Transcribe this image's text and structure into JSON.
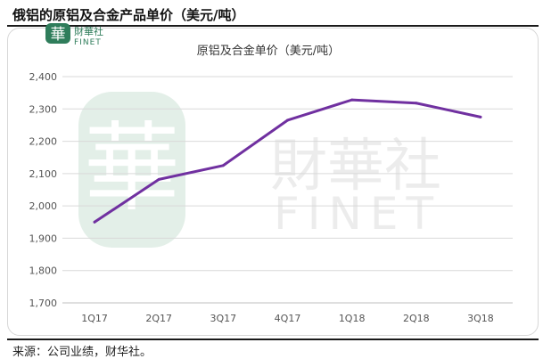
{
  "page": {
    "title": "俄铝的原铝及合金产品单价（美元/吨）",
    "source": "来源：公司业绩，财华社。"
  },
  "watermark": {
    "logo_char": "華",
    "brand_cn": "財華社",
    "brand_en": "FINET"
  },
  "colors": {
    "line": "#7030a0",
    "logo_green": "#2f7d5b",
    "watermark_green": "#e3efe8",
    "watermark_grey": "#ececec",
    "grid": "#d9d9d9"
  },
  "chart_data": {
    "type": "line",
    "title": "原铝及合金单价（美元/吨）",
    "categories": [
      "1Q17",
      "2Q17",
      "3Q17",
      "4Q17",
      "1Q18",
      "2Q18",
      "3Q18"
    ],
    "series": [
      {
        "values": [
          1950,
          2082,
          2125,
          2265,
          2328,
          2318,
          2275
        ]
      }
    ],
    "ylim": [
      1700,
      2400
    ],
    "yticks": [
      1700,
      1800,
      1900,
      2000,
      2100,
      2200,
      2300,
      2400
    ],
    "ytick_labels": [
      "1,700",
      "1,800",
      "1,900",
      "2,000",
      "2,100",
      "2,200",
      "2,300",
      "2,400"
    ],
    "grid": true,
    "legend": "none"
  }
}
